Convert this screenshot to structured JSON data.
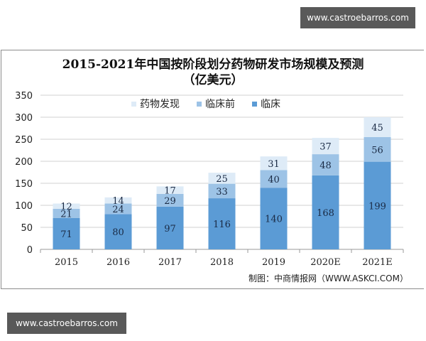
{
  "watermarks": {
    "top": "www.castroebarros.com",
    "bottom": "www.castroebarros.com"
  },
  "chart_data": {
    "type": "bar",
    "stacked": true,
    "title": "2015-2021年中国按阶段划分药物研发市场规模及预测",
    "subtitle": "（亿美元）",
    "categories": [
      "2015",
      "2016",
      "2017",
      "2018",
      "2019",
      "2020E",
      "2021E"
    ],
    "series": [
      {
        "name": "临床",
        "color": "#5b9bd5",
        "values": [
          71,
          80,
          97,
          116,
          140,
          168,
          199
        ]
      },
      {
        "name": "临床前",
        "color": "#9dc3e6",
        "values": [
          21,
          24,
          29,
          33,
          40,
          48,
          56
        ]
      },
      {
        "name": "药物发现",
        "color": "#deebf7",
        "values": [
          12,
          14,
          17,
          25,
          31,
          37,
          45
        ]
      }
    ],
    "legend": [
      "药物发现",
      "临床前",
      "临床"
    ],
    "legend_position": "top",
    "xlabel": "",
    "ylabel": "",
    "ylim": [
      0,
      350
    ],
    "yticks": [
      0,
      50,
      100,
      150,
      200,
      250,
      300,
      350
    ],
    "grid": true,
    "source": "制图：中商情报网（WWW.ASKCI.COM）"
  }
}
